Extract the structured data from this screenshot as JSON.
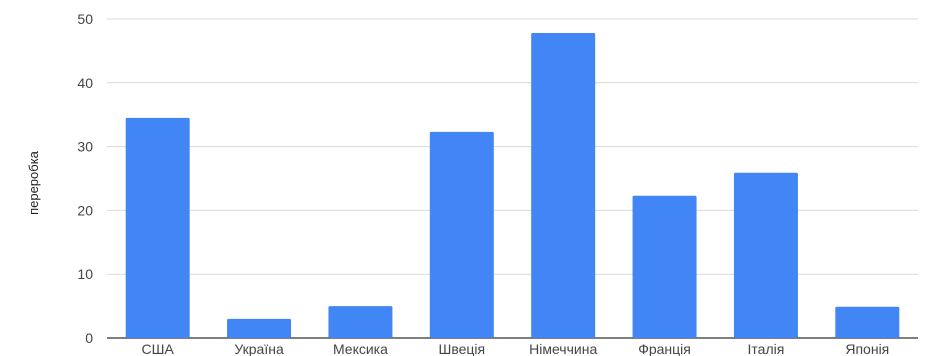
{
  "chart_data": {
    "type": "bar",
    "title": "",
    "xlabel": "",
    "ylabel": "переробка",
    "categories": [
      "США",
      "Україна",
      "Мексика",
      "Швеція",
      "Німеччина",
      "Франція",
      "Італія",
      "Японія"
    ],
    "values": [
      34.5,
      3,
      5,
      32.3,
      47.8,
      22.3,
      25.9,
      4.9
    ],
    "ylim": [
      0,
      50
    ],
    "yticks": [
      0,
      10,
      20,
      30,
      40,
      50
    ],
    "grid": true,
    "legend": "none",
    "bar_color": "#4285F4",
    "grid_color": "#D9D9D9",
    "baseline_color": "#333333"
  }
}
